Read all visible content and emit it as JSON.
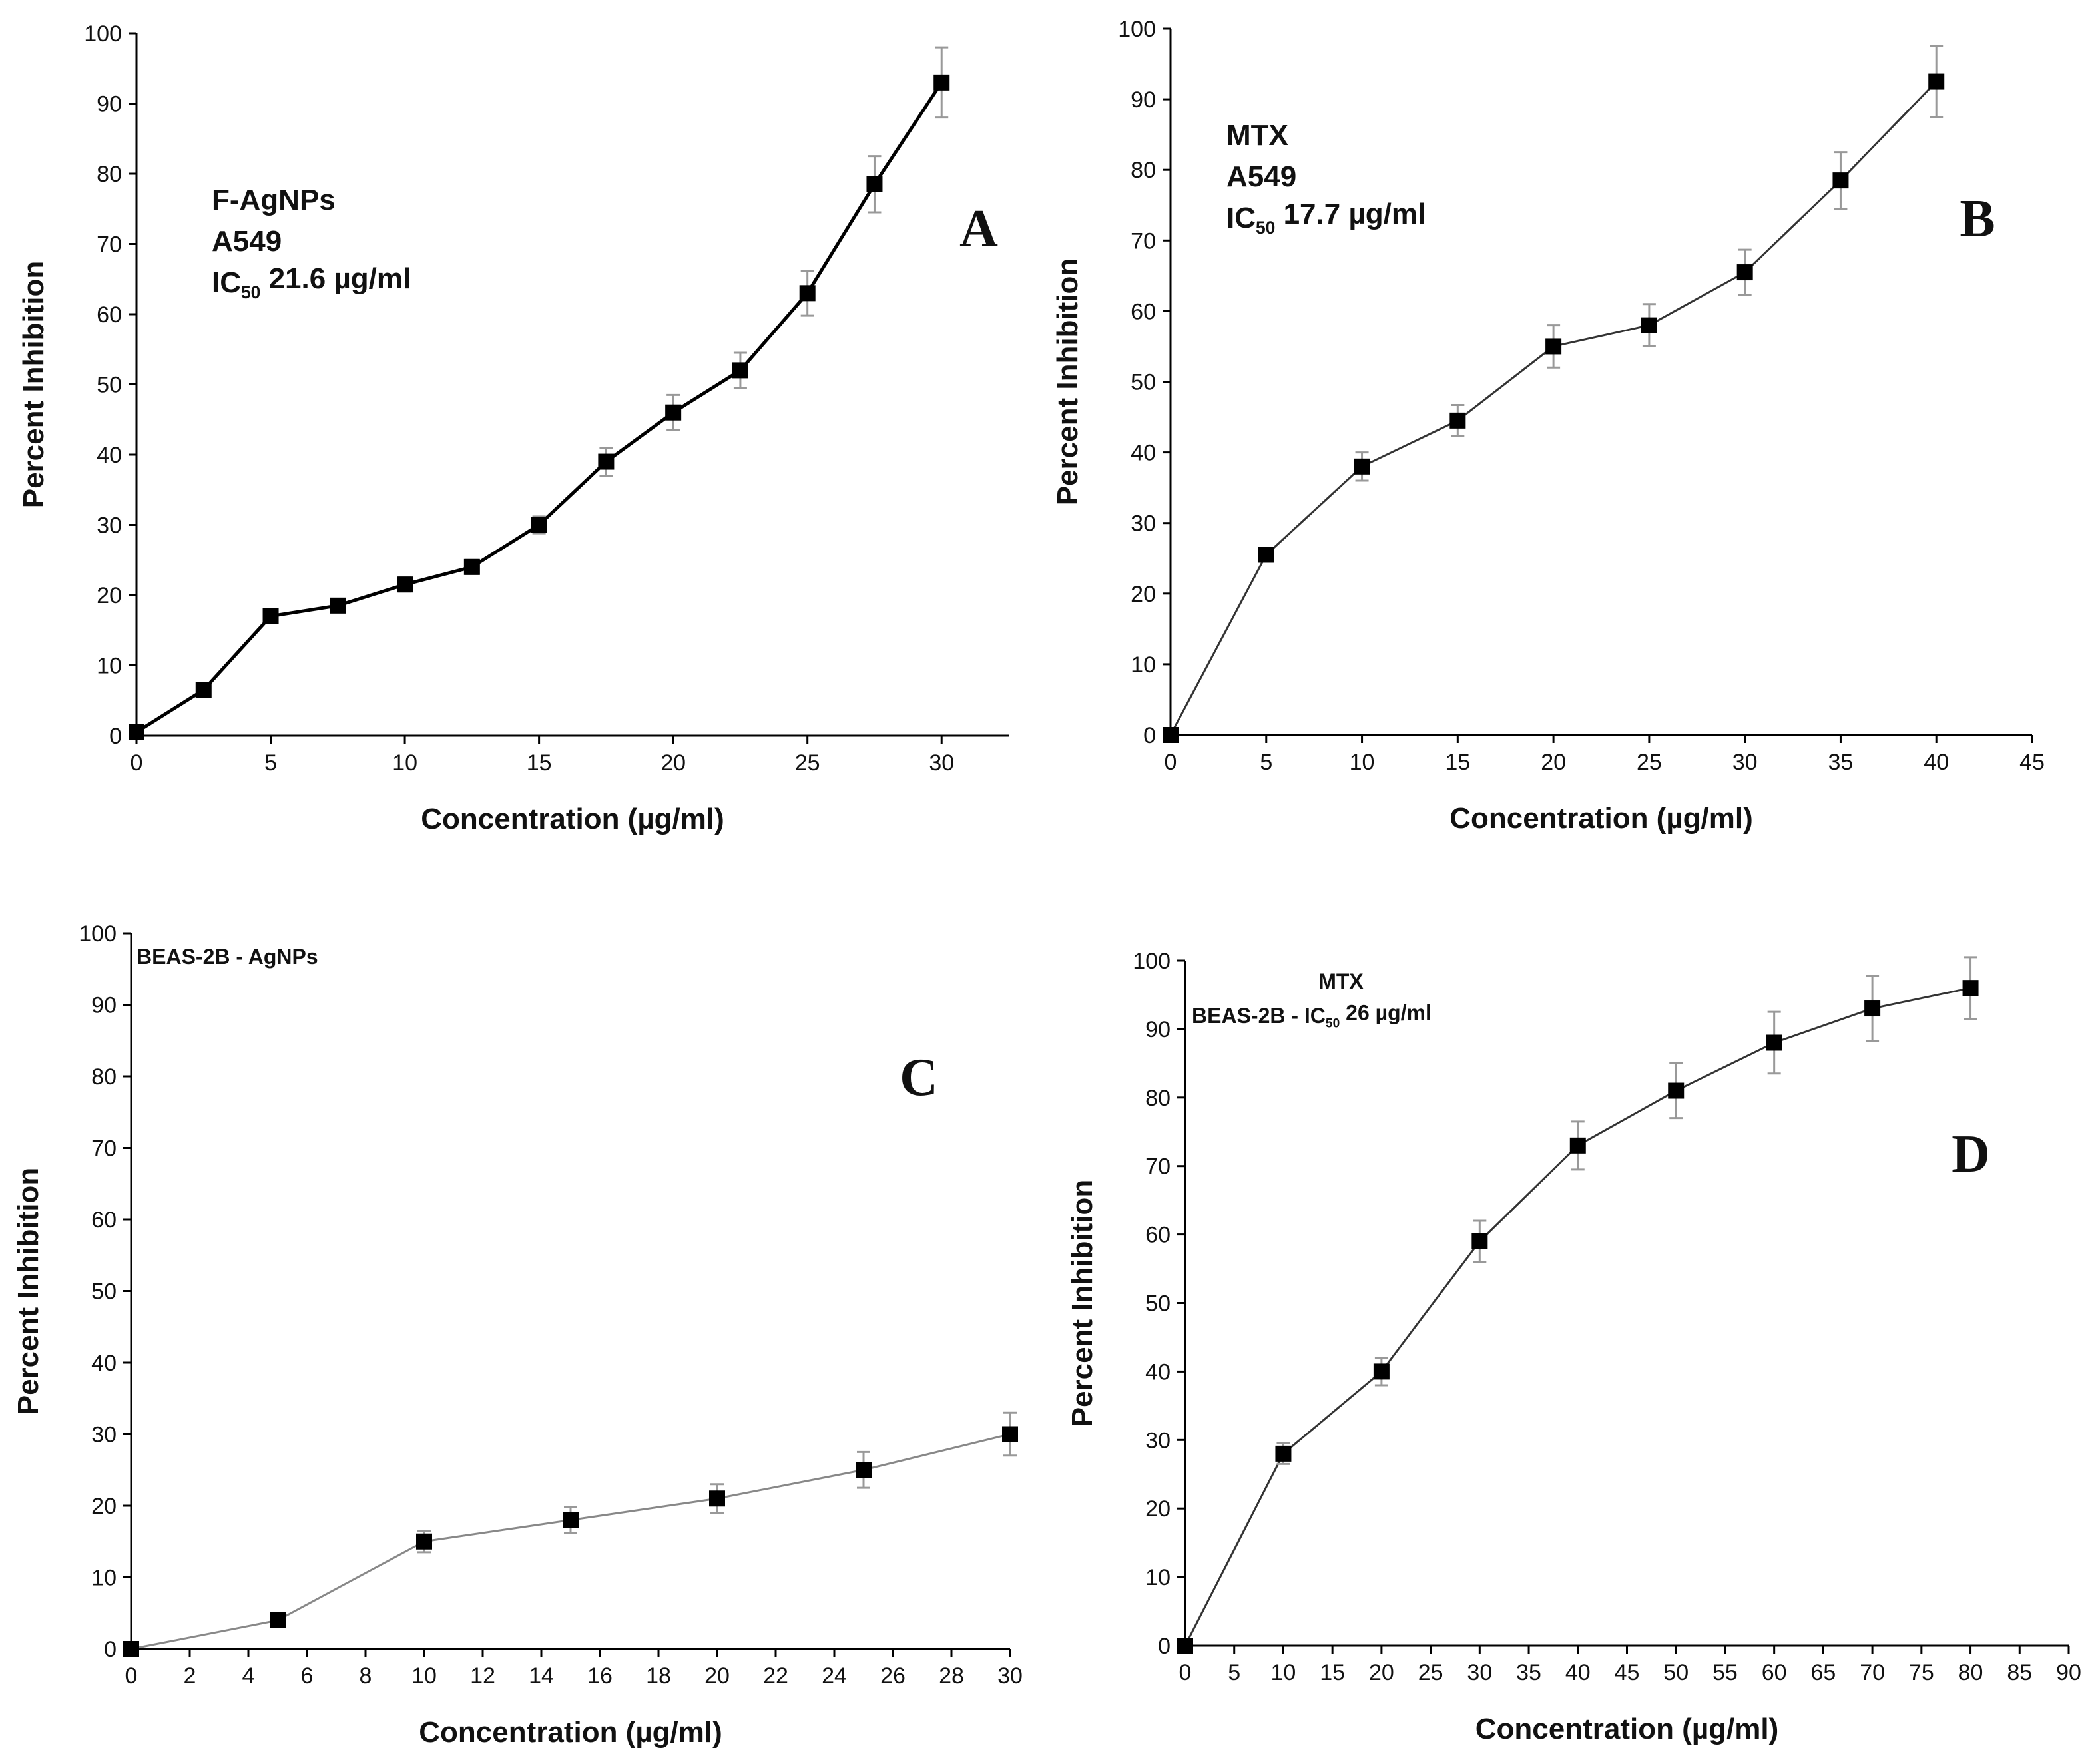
{
  "chart_data": [
    {
      "id": "A",
      "type": "line",
      "panel_letter": "A",
      "annotation": [
        "F-AgNPs",
        "A549",
        "IC|50| 21.6 µg/ml"
      ],
      "xlabel": "Concentration (µg/ml)",
      "ylabel": "Percent Inhibition",
      "xlim": [
        0,
        32.5
      ],
      "ylim": [
        0,
        100
      ],
      "xticks": [
        0,
        5,
        10,
        15,
        20,
        25,
        30
      ],
      "yticks": [
        0,
        10,
        20,
        30,
        40,
        50,
        60,
        70,
        80,
        90,
        100
      ],
      "x": [
        0,
        2.5,
        5,
        7.5,
        10,
        12.5,
        15,
        17.5,
        20,
        22.5,
        25,
        27.5,
        30
      ],
      "values": [
        0.5,
        6.5,
        17,
        18.5,
        21.5,
        24,
        30,
        39,
        46,
        52,
        63,
        78.5,
        93
      ],
      "errors": [
        0,
        0.6,
        0.8,
        0.8,
        1,
        1,
        1.2,
        2,
        2.5,
        2.5,
        3.2,
        4,
        5
      ],
      "line_color": "#000000",
      "line_weight": "heavy"
    },
    {
      "id": "B",
      "type": "line",
      "panel_letter": "B",
      "annotation": [
        "MTX",
        "A549",
        "IC|50| 17.7 µg/ml"
      ],
      "xlabel": "Concentration (µg/ml)",
      "ylabel": "Percent Inhibition",
      "xlim": [
        0,
        45
      ],
      "ylim": [
        0,
        100
      ],
      "xticks": [
        0,
        5,
        10,
        15,
        20,
        25,
        30,
        35,
        40,
        45
      ],
      "yticks": [
        0,
        10,
        20,
        30,
        40,
        50,
        60,
        70,
        80,
        90,
        100
      ],
      "x": [
        0,
        5,
        10,
        15,
        20,
        25,
        30,
        35,
        40
      ],
      "values": [
        0,
        25.5,
        38,
        44.5,
        55,
        58,
        65.5,
        78.5,
        92.5
      ],
      "errors": [
        0,
        1,
        2,
        2.2,
        3,
        3,
        3.2,
        4,
        5
      ],
      "line_color": "#333333",
      "line_weight": "light"
    },
    {
      "id": "C",
      "type": "line",
      "panel_letter": "C",
      "annotation": [
        "BEAS-2B - AgNPs"
      ],
      "xlabel": "Concentration (µg/ml)",
      "ylabel": "Percent Inhibition",
      "xlim": [
        0,
        30
      ],
      "ylim": [
        0,
        100
      ],
      "xticks": [
        0,
        2,
        4,
        6,
        8,
        10,
        12,
        14,
        16,
        18,
        20,
        22,
        24,
        26,
        28,
        30
      ],
      "yticks": [
        0,
        10,
        20,
        30,
        40,
        50,
        60,
        70,
        80,
        90,
        100
      ],
      "x": [
        0,
        5,
        10,
        15,
        20,
        25,
        30
      ],
      "values": [
        0,
        4,
        15,
        18,
        21,
        25,
        30
      ],
      "errors": [
        0,
        0,
        1.5,
        1.8,
        2,
        2.5,
        3
      ],
      "line_color": "#888888",
      "line_weight": "light"
    },
    {
      "id": "D",
      "type": "line",
      "panel_letter": "D",
      "annotation": [
        "MTX",
        "BEAS-2B - IC|50| 26 µg/ml"
      ],
      "xlabel": "Concentration (µg/ml)",
      "ylabel": "Percent Inhibition",
      "xlim": [
        0,
        90
      ],
      "ylim": [
        0,
        100
      ],
      "xticks": [
        0,
        5,
        10,
        15,
        20,
        25,
        30,
        35,
        40,
        45,
        50,
        55,
        60,
        65,
        70,
        75,
        80,
        85,
        90
      ],
      "yticks": [
        0,
        10,
        20,
        30,
        40,
        50,
        60,
        70,
        80,
        90,
        100
      ],
      "x": [
        0,
        10,
        20,
        30,
        40,
        50,
        60,
        70,
        80
      ],
      "values": [
        0,
        28,
        40,
        59,
        73,
        81,
        88,
        93,
        96
      ],
      "errors": [
        0,
        1.5,
        2,
        3,
        3.5,
        4,
        4.5,
        4.8,
        4.5
      ],
      "line_color": "#333333",
      "line_weight": "light"
    }
  ]
}
